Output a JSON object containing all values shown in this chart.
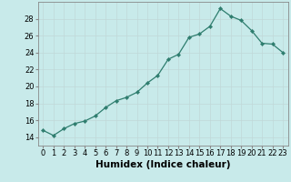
{
  "x": [
    0,
    1,
    2,
    3,
    4,
    5,
    6,
    7,
    8,
    9,
    10,
    11,
    12,
    13,
    14,
    15,
    16,
    17,
    18,
    19,
    20,
    21,
    22,
    23
  ],
  "y": [
    14.8,
    14.2,
    15.0,
    15.6,
    15.9,
    16.5,
    17.5,
    18.3,
    18.7,
    19.3,
    20.4,
    21.3,
    23.2,
    23.8,
    25.8,
    26.2,
    27.1,
    29.2,
    28.3,
    27.8,
    26.6,
    25.1,
    25.0,
    24.0
  ],
  "xlabel": "Humidex (Indice chaleur)",
  "ylim": [
    13,
    30
  ],
  "xlim": [
    -0.5,
    23.5
  ],
  "yticks": [
    14,
    16,
    18,
    20,
    22,
    24,
    26,
    28
  ],
  "xticks": [
    0,
    1,
    2,
    3,
    4,
    5,
    6,
    7,
    8,
    9,
    10,
    11,
    12,
    13,
    14,
    15,
    16,
    17,
    18,
    19,
    20,
    21,
    22,
    23
  ],
  "line_color": "#2e7d6e",
  "marker_color": "#2e7d6e",
  "bg_color": "#c8eaea",
  "grid_color": "#c0d8d8",
  "xlabel_fontsize": 7.5,
  "tick_fontsize": 6.0
}
